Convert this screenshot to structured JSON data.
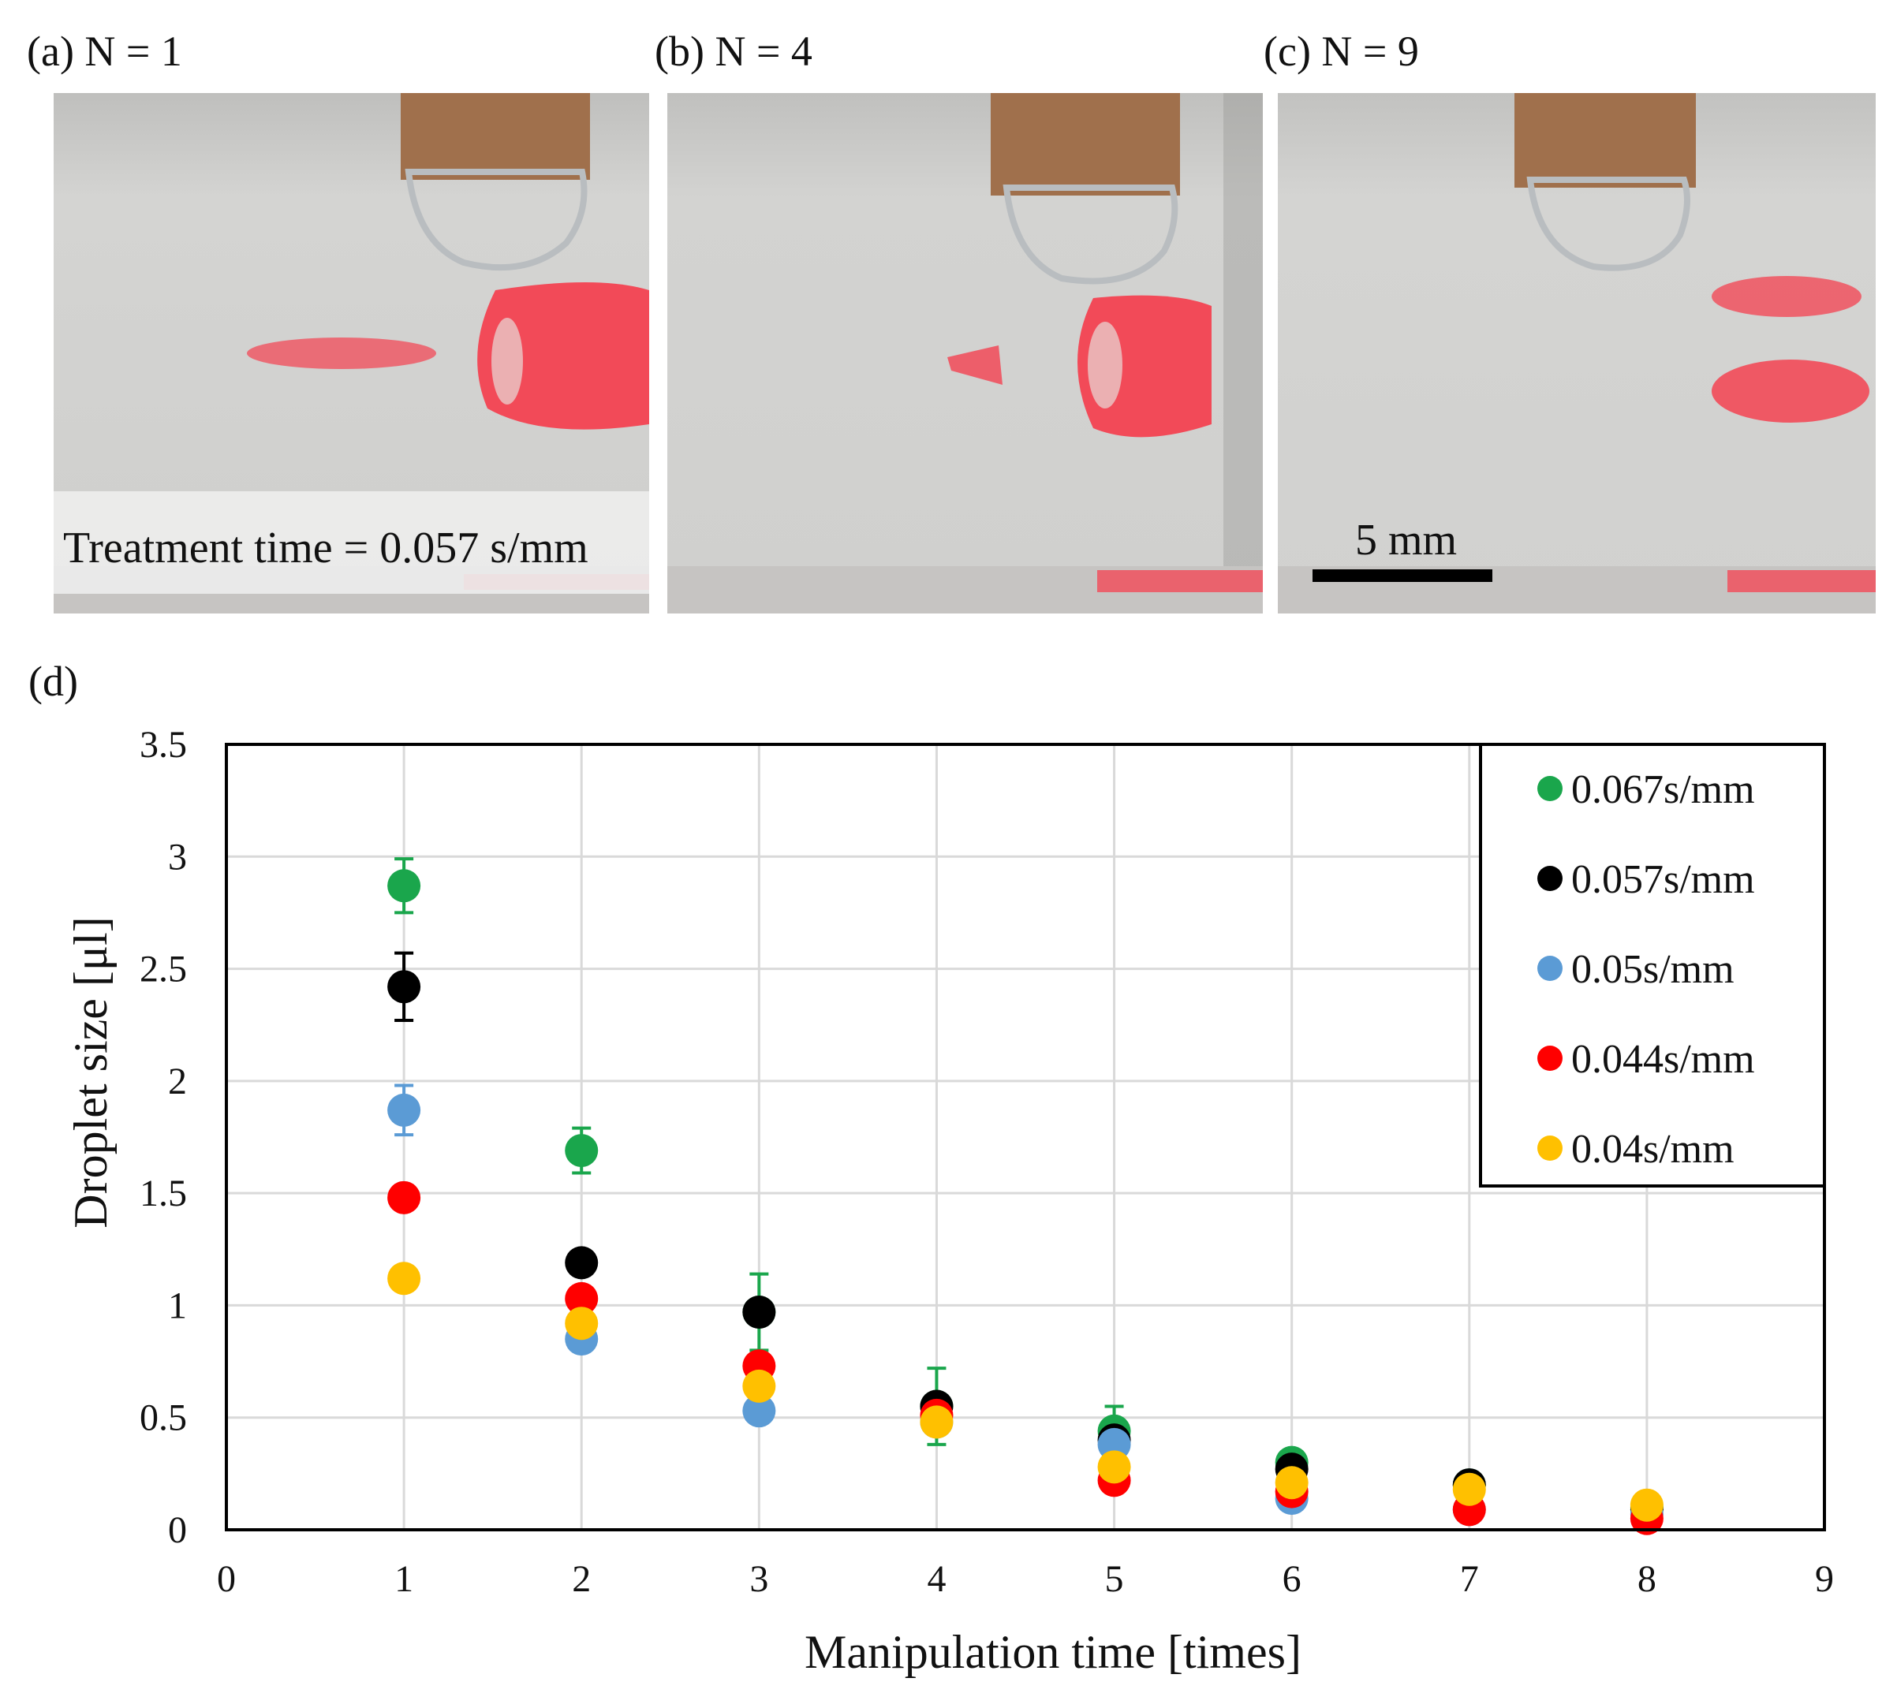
{
  "panels": [
    {
      "label": "(a) N = 1",
      "caption": "Treatment time = 0.057 s/mm"
    },
    {
      "label": "(b) N = 4"
    },
    {
      "label": "(c) N = 9",
      "scale_bar": "5 mm"
    }
  ],
  "colors": {
    "photo_bg": "#d2d2d0",
    "tip_copper": "#a0704c",
    "droplet_red": "#f24a58",
    "glass_edge": "#b9bdc0"
  },
  "chart_data": {
    "type": "scatter",
    "panel_label": "(d)",
    "title": "",
    "xlabel": "Manipulation time [times]",
    "ylabel": "Droplet size [μl]",
    "xlim": [
      0,
      9
    ],
    "ylim": [
      0,
      3.5
    ],
    "xticks": [
      "0",
      "1",
      "2",
      "3",
      "4",
      "5",
      "6",
      "7",
      "8",
      "9"
    ],
    "yticks": [
      "0",
      "0.5",
      "1",
      "1.5",
      "2",
      "2.5",
      "3",
      "3.5"
    ],
    "grid": true,
    "legend_position": "top-right",
    "series": [
      {
        "name": "0.067s/mm",
        "color": "#1aa64c",
        "points": [
          {
            "x": 1,
            "y": 2.87,
            "err": 0.12
          },
          {
            "x": 2,
            "y": 1.69,
            "err": 0.1
          },
          {
            "x": 3,
            "y": 0.97,
            "err": 0.17
          },
          {
            "x": 4,
            "y": 0.55,
            "err": 0.17
          },
          {
            "x": 5,
            "y": 0.44,
            "err": 0.11
          },
          {
            "x": 6,
            "y": 0.3,
            "err": 0
          },
          {
            "x": 7,
            "y": 0.2,
            "err": 0
          },
          {
            "x": 8,
            "y": 0.1,
            "err": 0
          }
        ]
      },
      {
        "name": "0.057s/mm",
        "color": "#000000",
        "points": [
          {
            "x": 1,
            "y": 2.42,
            "err": 0.15
          },
          {
            "x": 2,
            "y": 1.19,
            "err": 0
          },
          {
            "x": 3,
            "y": 0.97,
            "err": 0
          },
          {
            "x": 4,
            "y": 0.55,
            "err": 0
          },
          {
            "x": 5,
            "y": 0.4,
            "err": 0
          },
          {
            "x": 6,
            "y": 0.27,
            "err": 0
          },
          {
            "x": 7,
            "y": 0.2,
            "err": 0
          },
          {
            "x": 8,
            "y": 0.09,
            "err": 0
          }
        ]
      },
      {
        "name": "0.05s/mm",
        "color": "#5b9bd5",
        "points": [
          {
            "x": 1,
            "y": 1.87,
            "err": 0.11
          },
          {
            "x": 2,
            "y": 0.85,
            "err": 0
          },
          {
            "x": 3,
            "y": 0.53,
            "err": 0
          },
          {
            "x": 4,
            "y": 0.48,
            "err": 0
          },
          {
            "x": 5,
            "y": 0.38,
            "err": 0
          },
          {
            "x": 6,
            "y": 0.14,
            "err": 0
          },
          {
            "x": 7,
            "y": 0.09,
            "err": 0
          },
          {
            "x": 8,
            "y": 0.07,
            "err": 0
          }
        ]
      },
      {
        "name": "0.044s/mm",
        "color": "#ff0000",
        "points": [
          {
            "x": 1,
            "y": 1.48,
            "err": 0
          },
          {
            "x": 2,
            "y": 1.03,
            "err": 0
          },
          {
            "x": 3,
            "y": 0.73,
            "err": 0
          },
          {
            "x": 4,
            "y": 0.51,
            "err": 0
          },
          {
            "x": 5,
            "y": 0.22,
            "err": 0
          },
          {
            "x": 6,
            "y": 0.17,
            "err": 0
          },
          {
            "x": 7,
            "y": 0.09,
            "err": 0
          },
          {
            "x": 8,
            "y": 0.05,
            "err": 0
          }
        ]
      },
      {
        "name": "0.04s/mm",
        "color": "#ffc000",
        "points": [
          {
            "x": 1,
            "y": 1.12,
            "err": 0
          },
          {
            "x": 2,
            "y": 0.92,
            "err": 0
          },
          {
            "x": 3,
            "y": 0.64,
            "err": 0
          },
          {
            "x": 4,
            "y": 0.48,
            "err": 0
          },
          {
            "x": 5,
            "y": 0.28,
            "err": 0
          },
          {
            "x": 6,
            "y": 0.21,
            "err": 0
          },
          {
            "x": 7,
            "y": 0.18,
            "err": 0
          },
          {
            "x": 8,
            "y": 0.11,
            "err": 0
          }
        ]
      }
    ]
  }
}
